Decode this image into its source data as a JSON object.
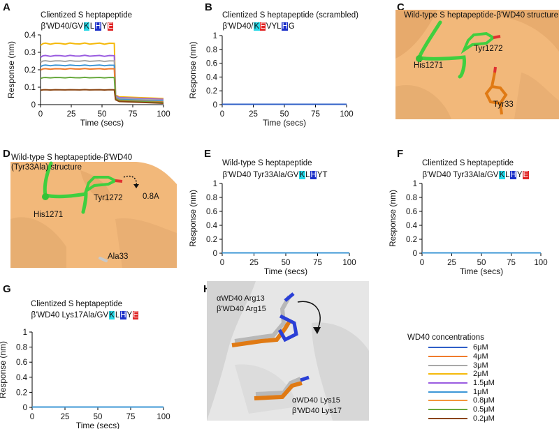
{
  "colors": {
    "c6": "#2f5fc7",
    "c4": "#f07b2c",
    "c3": "#a8a8a8",
    "c2": "#f5b90b",
    "c15": "#9a5ce0",
    "c1": "#3d97d6",
    "c08": "#f3953b",
    "c05": "#68a93e",
    "c02": "#8a4512",
    "surface": "#f2b87a",
    "surface_white": "#e9e9e9"
  },
  "panels": {
    "A": {
      "label": "A",
      "title": "Clientized S heptapeptide",
      "seq_prefix": "β'WD40/GV",
      "seq_k": "K",
      "seq_mid": "L",
      "seq_h": "H",
      "seq_y": "Y",
      "seq_e": "E"
    },
    "B": {
      "label": "B",
      "title": "Clientized S heptapeptide (scrambled)",
      "seq_prefix": "β'WD40/",
      "seq_k": "K",
      "seq_e": "E",
      "seq_mid": "VYL",
      "seq_h": "H",
      "seq_tail": "G"
    },
    "C": {
      "label": "C",
      "title": "Wild-type S heptapeptide-β'WD40 structure",
      "res1": "His1271",
      "res2": "Tyr1272",
      "res3": "Tyr33"
    },
    "D": {
      "label": "D",
      "title1": "Wild-type S heptapeptide-β'WD40",
      "title2": "(Tyr33Ala) structure",
      "res1": "His1271",
      "res2": "Tyr1272",
      "res3": "Ala33",
      "shift": "0.8A"
    },
    "E": {
      "label": "E",
      "title": "Wild-type S heptapeptide",
      "seq_prefix": "β'WD40 Tyr33Ala/GV",
      "seq_k": "K",
      "seq_mid": "L",
      "seq_h": "H",
      "seq_tail": "YT"
    },
    "F": {
      "label": "F",
      "title": "Clientized S heptapeptide",
      "seq_prefix": "β'WD40 Tyr33Ala/GV",
      "seq_k": "K",
      "seq_mid": "L",
      "seq_h": "H",
      "seq_y": "Y",
      "seq_e": "E"
    },
    "G": {
      "label": "G",
      "title": "Clientized S heptapeptide",
      "seq_prefix": "β'WD40 Lys17Ala/GV",
      "seq_k": "K",
      "seq_mid": "L",
      "seq_h": "H",
      "seq_y": "Y",
      "seq_e": "E"
    },
    "H": {
      "label": "H",
      "res_top1": "αWD40 Arg13",
      "res_top2": "β'WD40 Arg15",
      "res_bot1": "αWD40 Lys15",
      "res_bot2": "β'WD40 Lys17"
    }
  },
  "legend": {
    "title": "WD40 concentrations",
    "items": [
      {
        "label": "6μM",
        "color": "#2f5fc7"
      },
      {
        "label": "4μM",
        "color": "#f07b2c"
      },
      {
        "label": "3μM",
        "color": "#a8a8a8"
      },
      {
        "label": "2μM",
        "color": "#f5b90b"
      },
      {
        "label": "1.5μM",
        "color": "#9a5ce0"
      },
      {
        "label": "1μM",
        "color": "#3d97d6"
      },
      {
        "label": "0.8μM",
        "color": "#f3953b"
      },
      {
        "label": "0.5μM",
        "color": "#68a93e"
      },
      {
        "label": "0.2μM",
        "color": "#8a4512"
      }
    ]
  },
  "chart_data": [
    {
      "panel": "A",
      "type": "line",
      "xlabel": "Time (secs)",
      "ylabel": "Response (nm)",
      "xlim": [
        0,
        100
      ],
      "ylim": [
        0,
        0.4
      ],
      "xticks": [
        0,
        25,
        50,
        75,
        100
      ],
      "yticks": [
        0,
        0.1,
        0.2,
        0.3,
        0.4
      ],
      "ytick_labels": [
        "0",
        "0.1",
        "0.2",
        "0.3",
        "0.4"
      ],
      "association_end": 60,
      "series": [
        {
          "color": "#f5b90b",
          "plateau": 0.35,
          "end": 0.035
        },
        {
          "color": "#9a5ce0",
          "plateau": 0.28,
          "end": 0.03
        },
        {
          "color": "#a8a8a8",
          "plateau": 0.25,
          "end": 0.025
        },
        {
          "color": "#3d97d6",
          "plateau": 0.225,
          "end": 0.02
        },
        {
          "color": "#f07b2c",
          "plateau": 0.205,
          "end": 0.015
        },
        {
          "color": "#68a93e",
          "plateau": 0.155,
          "end": 0.012
        },
        {
          "color": "#8a4512",
          "plateau": 0.085,
          "end": 0.008
        }
      ]
    },
    {
      "panel": "B",
      "type": "line",
      "xlabel": "Time (secs)",
      "ylabel": "Response (nm)",
      "xlim": [
        0,
        100
      ],
      "ylim": [
        0,
        1
      ],
      "xticks": [
        0,
        25,
        50,
        75,
        100
      ],
      "yticks": [
        0,
        0.2,
        0.4,
        0.6,
        0.8,
        1
      ],
      "ytick_labels": [
        "0",
        "0.2",
        "0.4",
        "0.6",
        "0.8",
        "1"
      ],
      "series": [
        {
          "color": "#2f5fc7",
          "value": 0.005
        }
      ]
    },
    {
      "panel": "E",
      "type": "line",
      "xlabel": "Time (secs)",
      "ylabel": "Response (nm)",
      "xlim": [
        0,
        100
      ],
      "ylim": [
        0,
        1
      ],
      "xticks": [
        0,
        25,
        50,
        75,
        100
      ],
      "yticks": [
        0,
        0.2,
        0.4,
        0.6,
        0.8,
        1
      ],
      "ytick_labels": [
        "0",
        "0.2",
        "0.4",
        "0.6",
        "0.8",
        "1"
      ],
      "series": [
        {
          "color": "#3d97d6",
          "value": 0.005
        }
      ]
    },
    {
      "panel": "F",
      "type": "line",
      "xlabel": "Time (secs)",
      "ylabel": "Response (nm)",
      "xlim": [
        0,
        100
      ],
      "ylim": [
        0,
        1
      ],
      "xticks": [
        0,
        25,
        50,
        75,
        100
      ],
      "yticks": [
        0,
        0.2,
        0.4,
        0.6,
        0.8,
        1
      ],
      "ytick_labels": [
        "0",
        "0.2",
        "0.4",
        "0.6",
        "0.8",
        "1"
      ],
      "series": [
        {
          "color": "#3d97d6",
          "value": 0.005
        }
      ]
    },
    {
      "panel": "G",
      "type": "line",
      "xlabel": "Time (secs)",
      "ylabel": "Response (nm)",
      "xlim": [
        0,
        100
      ],
      "ylim": [
        0,
        1
      ],
      "xticks": [
        0,
        25,
        50,
        75,
        100
      ],
      "yticks": [
        0,
        0.2,
        0.4,
        0.6,
        0.8,
        1
      ],
      "ytick_labels": [
        "0",
        "0.2",
        "0.4",
        "0.6",
        "0.8",
        "1"
      ],
      "series": [
        {
          "color": "#3d97d6",
          "value": 0.005
        }
      ]
    }
  ]
}
